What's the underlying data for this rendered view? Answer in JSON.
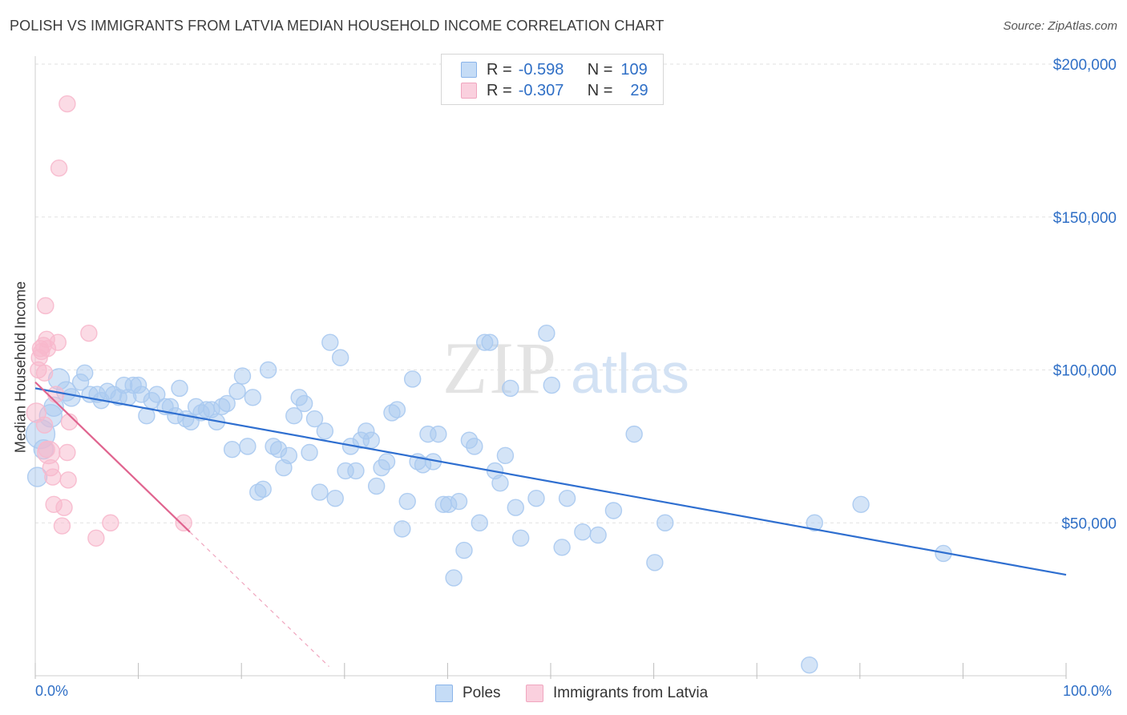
{
  "title": "POLISH VS IMMIGRANTS FROM LATVIA MEDIAN HOUSEHOLD INCOME CORRELATION CHART",
  "source": "Source: ZipAtlas.com",
  "watermark": {
    "zip": "ZIP",
    "atlas": "atlas"
  },
  "legend": {
    "rows": [
      {
        "r_label": "R =",
        "r_value": "-0.598",
        "n_label": "N =",
        "n_value": "109",
        "color": "#8ab4ea",
        "fill": "#c5dcf6"
      },
      {
        "r_label": "R =",
        "r_value": "-0.307",
        "n_label": "N =",
        "n_value": "29",
        "color": "#f0a6bf",
        "fill": "#fad0de"
      }
    ]
  },
  "bottom_legend": {
    "poles": "Poles",
    "latvia": "Immigrants from Latvia"
  },
  "axis": {
    "x_min_label": "0.0%",
    "x_max_label": "100.0%",
    "ylabel": "Median Household Income"
  },
  "chart_data": {
    "type": "scatter",
    "title": "POLISH VS IMMIGRANTS FROM LATVIA MEDIAN HOUSEHOLD INCOME CORRELATION CHART",
    "xlabel": "",
    "ylabel": "Median Household Income",
    "xlim": [
      0,
      100
    ],
    "ylim": [
      0,
      205000
    ],
    "y_ticks": [
      50000,
      100000,
      150000,
      200000
    ],
    "y_tick_labels": [
      "$50,000",
      "$100,000",
      "$150,000",
      "$200,000"
    ],
    "x_tick_labels": [
      "0.0%",
      "100.0%"
    ],
    "grid": "horizontal dashed",
    "legend_position": "top-center",
    "series": [
      {
        "name": "Poles",
        "color": "#2f6fd0",
        "fill": "#a9c9f0",
        "trend": {
          "x": [
            0,
            100
          ],
          "y": [
            94000,
            33000
          ]
        },
        "points": [
          [
            0.2,
            65000,
            12
          ],
          [
            0.5,
            79000,
            18
          ],
          [
            0.8,
            74000,
            12
          ],
          [
            1.5,
            85000,
            14
          ],
          [
            1.8,
            88000,
            12
          ],
          [
            2.3,
            97000,
            13
          ],
          [
            3,
            93000,
            12
          ],
          [
            3.5,
            91000,
            11
          ],
          [
            4.4,
            96000,
            10
          ],
          [
            4.8,
            99000,
            10
          ],
          [
            5.3,
            92000,
            10
          ],
          [
            6,
            92000,
            10
          ],
          [
            6.4,
            90000,
            10
          ],
          [
            7,
            93000,
            10
          ],
          [
            7.6,
            92000,
            10
          ],
          [
            8.1,
            91000,
            10
          ],
          [
            8.6,
            95000,
            10
          ],
          [
            9,
            91000,
            10
          ],
          [
            9.5,
            95000,
            10
          ],
          [
            10,
            95000,
            10
          ],
          [
            10.3,
            92000,
            10
          ],
          [
            10.8,
            85000,
            10
          ],
          [
            11.3,
            90000,
            10
          ],
          [
            11.8,
            92000,
            10
          ],
          [
            12.6,
            88000,
            10
          ],
          [
            13.1,
            88000,
            10
          ],
          [
            13.6,
            85000,
            10
          ],
          [
            14,
            94000,
            10
          ],
          [
            14.6,
            84000,
            10
          ],
          [
            15.1,
            83000,
            10
          ],
          [
            15.6,
            88000,
            10
          ],
          [
            16.1,
            86000,
            10
          ],
          [
            16.6,
            87000,
            10
          ],
          [
            17.1,
            87000,
            10
          ],
          [
            17.6,
            83000,
            10
          ],
          [
            18.1,
            88000,
            10
          ],
          [
            18.6,
            89000,
            10
          ],
          [
            19.1,
            74000,
            10
          ],
          [
            19.6,
            93000,
            10
          ],
          [
            20.1,
            98000,
            10
          ],
          [
            20.6,
            75000,
            10
          ],
          [
            21.1,
            91000,
            10
          ],
          [
            21.6,
            60000,
            10
          ],
          [
            22.1,
            61000,
            10
          ],
          [
            22.6,
            100000,
            10
          ],
          [
            23.1,
            75000,
            10
          ],
          [
            23.6,
            74000,
            10
          ],
          [
            24.1,
            68000,
            10
          ],
          [
            24.6,
            72000,
            10
          ],
          [
            25.1,
            85000,
            10
          ],
          [
            25.6,
            91000,
            10
          ],
          [
            26.1,
            89000,
            10
          ],
          [
            26.6,
            73000,
            10
          ],
          [
            27.1,
            84000,
            10
          ],
          [
            27.6,
            60000,
            10
          ],
          [
            28.1,
            80000,
            10
          ],
          [
            28.6,
            109000,
            10
          ],
          [
            29.1,
            58000,
            10
          ],
          [
            29.6,
            104000,
            10
          ],
          [
            30.1,
            67000,
            10
          ],
          [
            30.6,
            75000,
            10
          ],
          [
            31.1,
            67000,
            10
          ],
          [
            31.6,
            77000,
            10
          ],
          [
            32.1,
            80000,
            10
          ],
          [
            32.6,
            77000,
            10
          ],
          [
            33.1,
            62000,
            10
          ],
          [
            33.6,
            68000,
            10
          ],
          [
            34.1,
            70000,
            10
          ],
          [
            34.6,
            86000,
            10
          ],
          [
            35.1,
            87000,
            10
          ],
          [
            35.6,
            48000,
            10
          ],
          [
            36.1,
            57000,
            10
          ],
          [
            36.6,
            97000,
            10
          ],
          [
            37.1,
            70000,
            10
          ],
          [
            37.6,
            69000,
            10
          ],
          [
            38.1,
            79000,
            10
          ],
          [
            38.6,
            70000,
            10
          ],
          [
            39.1,
            79000,
            10
          ],
          [
            39.6,
            56000,
            10
          ],
          [
            40.1,
            56000,
            10
          ],
          [
            40.6,
            32000,
            10
          ],
          [
            41.1,
            57000,
            10
          ],
          [
            41.6,
            41000,
            10
          ],
          [
            42.1,
            77000,
            10
          ],
          [
            42.6,
            75000,
            10
          ],
          [
            43.1,
            50000,
            10
          ],
          [
            43.6,
            109000,
            10
          ],
          [
            44.1,
            109000,
            10
          ],
          [
            44.6,
            67000,
            10
          ],
          [
            45.1,
            63000,
            10
          ],
          [
            45.6,
            72000,
            10
          ],
          [
            46.1,
            94000,
            10
          ],
          [
            46.6,
            55000,
            10
          ],
          [
            47.1,
            45000,
            10
          ],
          [
            48.6,
            58000,
            10
          ],
          [
            49.6,
            112000,
            10
          ],
          [
            50.1,
            95000,
            10
          ],
          [
            51.1,
            42000,
            10
          ],
          [
            51.6,
            58000,
            10
          ],
          [
            53.1,
            47000,
            10
          ],
          [
            54.6,
            46000,
            10
          ],
          [
            56.1,
            54000,
            10
          ],
          [
            58.1,
            79000,
            10
          ],
          [
            60.1,
            37000,
            10
          ],
          [
            61.1,
            50000,
            10
          ],
          [
            75.1,
            3500,
            10
          ],
          [
            75.6,
            50000,
            10
          ],
          [
            80.1,
            56000,
            10
          ],
          [
            88.1,
            40000,
            10
          ]
        ]
      },
      {
        "name": "Immigrants from Latvia",
        "color": "#e0648f",
        "fill": "#f7b8cc",
        "trend": {
          "x": [
            0,
            15
          ],
          "y": [
            96000,
            47000
          ]
        },
        "trend_ext": {
          "x": [
            15,
            28.5
          ],
          "y": [
            47000,
            3000
          ]
        },
        "points": [
          [
            0.1,
            86000,
            12
          ],
          [
            0.3,
            100000,
            10
          ],
          [
            0.4,
            104000,
            10
          ],
          [
            0.5,
            107000,
            10
          ],
          [
            0.6,
            106000,
            10
          ],
          [
            0.8,
            108000,
            10
          ],
          [
            0.9,
            99000,
            10
          ],
          [
            1,
            121000,
            10
          ],
          [
            1.1,
            110000,
            10
          ],
          [
            1.2,
            107000,
            10
          ],
          [
            1.3,
            73000,
            14
          ],
          [
            1.5,
            68000,
            10
          ],
          [
            1.7,
            65000,
            10
          ],
          [
            1.8,
            56000,
            10
          ],
          [
            2,
            92000,
            10
          ],
          [
            2.2,
            109000,
            10
          ],
          [
            2.3,
            166000,
            10
          ],
          [
            2.6,
            49000,
            10
          ],
          [
            2.8,
            55000,
            10
          ],
          [
            3.1,
            73000,
            10
          ],
          [
            3.2,
            64000,
            10
          ],
          [
            3.3,
            83000,
            10
          ],
          [
            3.1,
            187000,
            10
          ],
          [
            5.2,
            112000,
            10
          ],
          [
            5.9,
            45000,
            10
          ],
          [
            7.3,
            50000,
            10
          ],
          [
            14.4,
            50000,
            10
          ],
          [
            0.9,
            82000,
            10
          ],
          [
            1.1,
            74000,
            10
          ]
        ]
      }
    ]
  }
}
